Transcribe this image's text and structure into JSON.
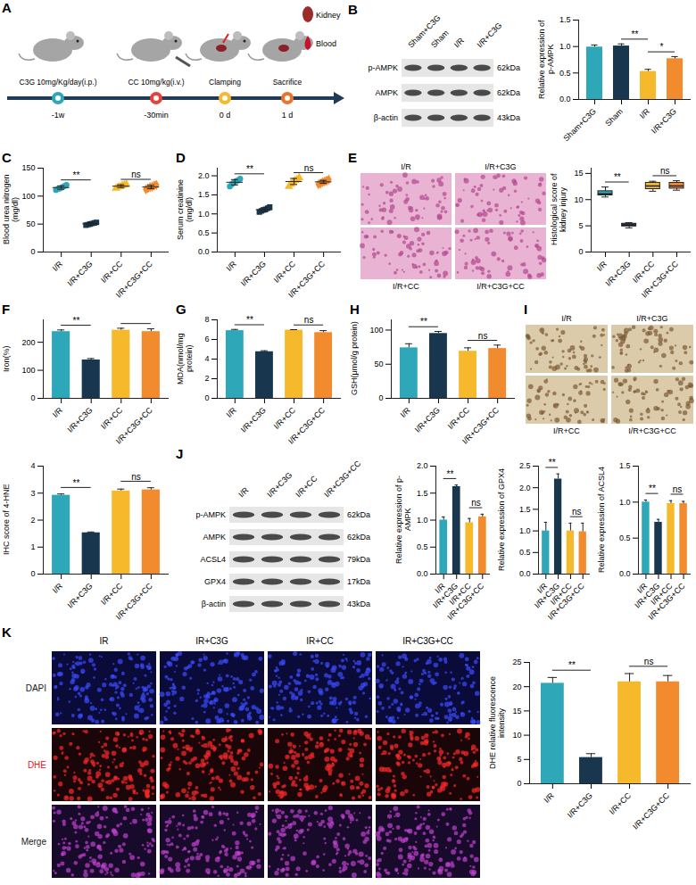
{
  "schematic": {
    "panel": "A",
    "steps": [
      {
        "label": "C3G 10mg/Kg/day(i.p.)",
        "time": "-1w",
        "color": "#2ea7b8"
      },
      {
        "label": "CC 10mg/kg(i.v.)",
        "time": "-30min",
        "color": "#e8413c"
      },
      {
        "label": "Clamping",
        "time": "0 d",
        "color": "#f7b92c"
      },
      {
        "label": "Sacrifice",
        "time": "1 d",
        "color": "#f0712b"
      }
    ],
    "samples": [
      "Kidney",
      "Blood"
    ]
  },
  "blots": [
    {
      "panel": "B",
      "lanes": [
        "Sham+C3G",
        "Sham",
        "I/R",
        "I/R+C3G"
      ],
      "rows": [
        {
          "name": "p-AMPK",
          "size": "62kDa"
        },
        {
          "name": "AMPK",
          "size": "62kDa"
        },
        {
          "name": "β-actin",
          "size": "43kDa"
        }
      ]
    },
    {
      "panel": "J",
      "lanes": [
        "I/R",
        "I/R+C3G",
        "I/R+CC",
        "I/R+C3G+CC"
      ],
      "rows": [
        {
          "name": "p-AMPK",
          "size": "62kDa"
        },
        {
          "name": "AMPK",
          "size": "62kDa"
        },
        {
          "name": "ACSL4",
          "size": "79kDa"
        },
        {
          "name": "GPX4",
          "size": "17kDa"
        },
        {
          "name": "β-actin",
          "size": "43kDa"
        }
      ]
    }
  ],
  "images": [
    {
      "panel": "E",
      "labels": [
        "I/R",
        "I/R+C3G",
        "I/R+CC",
        "I/R+C3G+CC"
      ]
    },
    {
      "panel": "I",
      "labels": [
        "I/R",
        "I/R+C3G",
        "I/R+CC",
        "I/R+C3G+CC"
      ]
    },
    {
      "panel": "K",
      "columns": [
        "IR",
        "IR+C3G",
        "IR+CC",
        "IR+C3G+CC"
      ],
      "rows": [
        {
          "name": "DAPI",
          "color": "#1a1a1a"
        },
        {
          "name": "DHE",
          "color": "#e02020"
        },
        {
          "name": "Merge",
          "color": "#1a1a1a"
        }
      ]
    }
  ],
  "chart_data": [
    {
      "type": "bar",
      "y_label": "Relative expression of p-AMPK",
      "categories": [
        "Sham+C3G",
        "Sham",
        "I/R",
        "I/R+C3G"
      ],
      "values": [
        0.99,
        1.01,
        0.53,
        0.77
      ],
      "errors": [
        0.04,
        0.04,
        0.04,
        0.04
      ],
      "colors": [
        "#2ea7b8",
        "#18374f",
        "#f7b92c",
        "#f28a2e"
      ],
      "ylim": [
        0,
        1.5
      ],
      "yticks": [
        {
          "value": 0,
          "label": "0.0"
        },
        {
          "value": 0.5,
          "label": "0.5"
        },
        {
          "value": 1,
          "label": "1.0"
        },
        {
          "value": 1.5,
          "label": "1.5"
        }
      ],
      "annotations": [
        {
          "from": 1,
          "to": 2,
          "text": "**"
        },
        {
          "from": 2,
          "to": 3,
          "text": "*"
        }
      ]
    },
    {
      "panel": "C",
      "type": "strip",
      "y_label": "Blood urea nitrogen (mg/dl)",
      "series": [
        {
          "name": "I/R",
          "color": "#2ea7b8",
          "marker": "circle",
          "points": [
            111,
            113,
            114,
            116,
            118,
            120
          ],
          "value": 115.3,
          "error": 3
        },
        {
          "name": "I/R+C3G",
          "color": "#18374f",
          "marker": "square",
          "points": [
            48,
            49,
            50,
            51,
            52,
            53
          ],
          "value": 50.5,
          "error": 2
        },
        {
          "name": "I/R+CC",
          "color": "#f7b92c",
          "marker": "triangle",
          "points": [
            114,
            116,
            117,
            119,
            120,
            121
          ],
          "value": 117.8,
          "error": 2.5
        },
        {
          "name": "I/R+C3G+CC",
          "color": "#f28a2e",
          "marker": "diamond",
          "points": [
            112,
            114,
            116,
            117,
            119,
            120
          ],
          "value": 116.3,
          "error": 3
        }
      ],
      "ylim": [
        0,
        150
      ],
      "yticks": [
        0,
        50,
        100,
        150
      ],
      "annotations": [
        {
          "from": 0,
          "to": 1,
          "text": "**"
        },
        {
          "from": 2,
          "to": 3,
          "text": "ns"
        }
      ]
    },
    {
      "panel": "D",
      "type": "strip",
      "y_label": "Serum creatinine (mg/dl)",
      "series": [
        {
          "name": "I/R",
          "color": "#2ea7b8",
          "marker": "circle",
          "points": [
            1.72,
            1.78,
            1.82,
            1.86,
            1.88,
            1.92
          ],
          "value": 1.83,
          "error": 0.07
        },
        {
          "name": "I/R+C3G",
          "color": "#18374f",
          "marker": "square",
          "points": [
            1.05,
            1.08,
            1.1,
            1.12,
            1.15,
            1.18
          ],
          "value": 1.11,
          "error": 0.05
        },
        {
          "name": "I/R+CC",
          "color": "#f7b92c",
          "marker": "triangle",
          "points": [
            1.72,
            1.78,
            1.84,
            1.88,
            1.9,
            1.95
          ],
          "value": 1.85,
          "error": 0.08
        },
        {
          "name": "I/R+C3G+CC",
          "color": "#f28a2e",
          "marker": "diamond",
          "points": [
            1.78,
            1.8,
            1.83,
            1.85,
            1.87,
            1.9
          ],
          "value": 1.84,
          "error": 0.04
        }
      ],
      "ylim": [
        0,
        2.2
      ],
      "yticks": [
        {
          "value": 0,
          "label": "0.0"
        },
        {
          "value": 0.5,
          "label": "0.5"
        },
        {
          "value": 1,
          "label": "1.0"
        },
        {
          "value": 1.5,
          "label": "1.5"
        },
        {
          "value": 2,
          "label": "2.0"
        }
      ],
      "annotations": [
        {
          "from": 0,
          "to": 1,
          "text": "**"
        },
        {
          "from": 2,
          "to": 3,
          "text": "ns"
        }
      ]
    },
    {
      "type": "box",
      "y_label": "Histological score of kidney injury",
      "categories": [
        "I/R",
        "I/R+C3G",
        "I/R+CC",
        "I/R+C3G+CC"
      ],
      "boxes": [
        {
          "min": 10.5,
          "q1": 10.8,
          "median": 11.1,
          "q3": 11.6,
          "max": 12.4
        },
        {
          "min": 4.6,
          "q1": 4.9,
          "median": 5.1,
          "q3": 5.4,
          "max": 5.6
        },
        {
          "min": 11.6,
          "q1": 12.0,
          "median": 12.6,
          "q3": 13.2,
          "max": 13.5
        },
        {
          "min": 11.8,
          "q1": 12.1,
          "median": 12.6,
          "q3": 13.2,
          "max": 13.6
        }
      ],
      "colors": [
        "#2ea7b8",
        "#18374f",
        "#f7b92c",
        "#f28a2e"
      ],
      "ylim": [
        0,
        16
      ],
      "yticks": [
        0,
        5,
        10,
        15
      ],
      "annotations": [
        {
          "from": 0,
          "to": 1,
          "text": "**"
        },
        {
          "from": 2,
          "to": 3,
          "text": "ns"
        }
      ]
    },
    {
      "panel": "F",
      "type": "bar",
      "y_label": "Iron(%)",
      "categories": [
        "I/R",
        "I/R+C3G",
        "I/R+CC",
        "I/R+C3G+CC"
      ],
      "values": [
        238,
        137,
        243,
        238
      ],
      "errors": [
        6,
        5,
        7,
        10
      ],
      "colors": [
        "#2ea7b8",
        "#18374f",
        "#f7b92c",
        "#f28a2e"
      ],
      "ylim": [
        0,
        280
      ],
      "yticks": [
        0,
        100,
        200
      ],
      "annotations": [
        {
          "from": 0,
          "to": 1,
          "text": "**"
        },
        {
          "from": 2,
          "to": 3,
          "text": ""
        }
      ]
    },
    {
      "panel": "G",
      "type": "bar",
      "y_label": "MDA(nmol/mg protein)",
      "categories": [
        "I/R",
        "I/R+C3G",
        "I/R+CC",
        "I/R+C3G+CC"
      ],
      "values": [
        6.9,
        4.75,
        6.95,
        6.7
      ],
      "errors": [
        0.12,
        0.1,
        0.05,
        0.2
      ],
      "colors": [
        "#2ea7b8",
        "#18374f",
        "#f7b92c",
        "#f28a2e"
      ],
      "ylim": [
        0,
        8
      ],
      "yticks": [
        0,
        2,
        4,
        6,
        8
      ],
      "annotations": [
        {
          "from": 0,
          "to": 1,
          "text": "**"
        },
        {
          "from": 2,
          "to": 3,
          "text": "ns"
        }
      ]
    },
    {
      "panel": "H",
      "type": "bar",
      "y_label": "GSH(μmol/g protein)",
      "categories": [
        "I/R",
        "I/R+C3G",
        "I/R+CC",
        "I/R+C3G+CC"
      ],
      "values": [
        74,
        95,
        69,
        73
      ],
      "errors": [
        6,
        3,
        5,
        5
      ],
      "colors": [
        "#2ea7b8",
        "#18374f",
        "#f7b92c",
        "#f28a2e"
      ],
      "ylim": [
        0,
        115
      ],
      "yticks": [
        0,
        50,
        100
      ],
      "annotations": [
        {
          "from": 0,
          "to": 1,
          "text": "**"
        },
        {
          "from": 2,
          "to": 3,
          "text": "ns"
        }
      ]
    },
    {
      "type": "bar",
      "y_label": "IHC score of 4-HNE",
      "categories": [
        "I/R",
        "I/R+C3G",
        "I/R+CC",
        "I/R+C3G+CC"
      ],
      "values": [
        2.92,
        1.53,
        3.08,
        3.12
      ],
      "errors": [
        0.05,
        0.03,
        0.07,
        0.08
      ],
      "colors": [
        "#2ea7b8",
        "#18374f",
        "#f7b92c",
        "#f28a2e"
      ],
      "ylim": [
        0,
        4
      ],
      "yticks": [
        0,
        1,
        2,
        3,
        4
      ],
      "annotations": [
        {
          "from": 0,
          "to": 1,
          "text": "**"
        },
        {
          "from": 2,
          "to": 3,
          "text": "ns"
        }
      ]
    },
    {
      "type": "bar",
      "y_label": "Relative expression of p-AMPK",
      "categories": [
        "I/R",
        "I/R+C3G",
        "I/R+CC",
        "I/R+C3G+CC"
      ],
      "values": [
        1.0,
        1.62,
        0.95,
        1.06
      ],
      "errors": [
        0.06,
        0.03,
        0.08,
        0.05
      ],
      "colors": [
        "#2ea7b8",
        "#18374f",
        "#f7b92c",
        "#f28a2e"
      ],
      "ylim": [
        0,
        2
      ],
      "yticks": [
        {
          "value": 0,
          "label": "0.0"
        },
        {
          "value": 0.5,
          "label": "0.5"
        },
        {
          "value": 1,
          "label": "1.0"
        },
        {
          "value": 1.5,
          "label": "1.5"
        },
        {
          "value": 2,
          "label": "2.0"
        }
      ],
      "annotations": [
        {
          "from": 0,
          "to": 1,
          "text": "**"
        },
        {
          "from": 2,
          "to": 3,
          "text": "ns"
        }
      ]
    },
    {
      "type": "bar",
      "y_label": "Relative expression of GPX4",
      "categories": [
        "I/R",
        "I/R+C3G",
        "I/R+CC",
        "I/R+C3G+CC"
      ],
      "values": [
        1.0,
        2.2,
        1.0,
        0.98
      ],
      "errors": [
        0.2,
        0.12,
        0.18,
        0.2
      ],
      "colors": [
        "#2ea7b8",
        "#18374f",
        "#f7b92c",
        "#f28a2e"
      ],
      "ylim": [
        0,
        2.5
      ],
      "yticks": [
        {
          "value": 0,
          "label": "0.0"
        },
        {
          "value": 0.5,
          "label": "0.5"
        },
        {
          "value": 1,
          "label": "1.0"
        },
        {
          "value": 1.5,
          "label": "1.5"
        },
        {
          "value": 2,
          "label": "2.0"
        },
        {
          "value": 2.5,
          "label": "2.5"
        }
      ],
      "annotations": [
        {
          "from": 0,
          "to": 1,
          "text": "**"
        },
        {
          "from": 2,
          "to": 3,
          "text": "ns"
        }
      ]
    },
    {
      "type": "bar",
      "y_label": "Relative expression of ACSL4",
      "categories": [
        "I/R",
        "I/R+C3G",
        "I/R+CC",
        "I/R+C3G+CC"
      ],
      "values": [
        1.0,
        0.72,
        0.98,
        0.98
      ],
      "errors": [
        0.03,
        0.04,
        0.04,
        0.03
      ],
      "colors": [
        "#2ea7b8",
        "#18374f",
        "#f7b92c",
        "#f28a2e"
      ],
      "ylim": [
        0,
        1.5
      ],
      "yticks": [
        {
          "value": 0,
          "label": "0.0"
        },
        {
          "value": 0.5,
          "label": "0.5"
        },
        {
          "value": 1,
          "label": "1.0"
        },
        {
          "value": 1.5,
          "label": "1.5"
        }
      ],
      "annotations": [
        {
          "from": 0,
          "to": 1,
          "text": "**"
        },
        {
          "from": 2,
          "to": 3,
          "text": "ns"
        }
      ]
    },
    {
      "type": "bar",
      "y_label": "DHE relative fluorescence intensity",
      "categories": [
        "I/R",
        "I/R+C3G",
        "I/R+CC",
        "I/R+C3G+CC"
      ],
      "values": [
        20.7,
        5.4,
        21.0,
        21.0
      ],
      "errors": [
        1.2,
        0.8,
        1.7,
        1.3
      ],
      "colors": [
        "#2ea7b8",
        "#18374f",
        "#f7b92c",
        "#f28a2e"
      ],
      "ylim": [
        0,
        25
      ],
      "yticks": [
        0,
        5,
        10,
        15,
        20,
        25
      ],
      "annotations": [
        {
          "from": 0,
          "to": 1,
          "text": "**"
        },
        {
          "from": 2,
          "to": 3,
          "text": "ns"
        }
      ]
    }
  ]
}
